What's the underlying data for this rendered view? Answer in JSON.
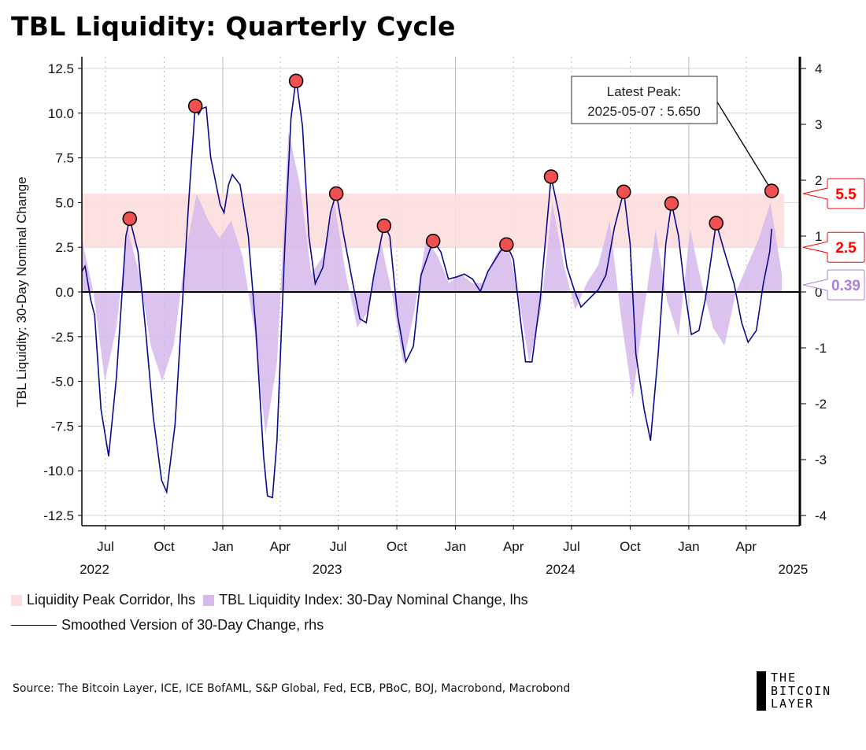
{
  "title": "TBL Liquidity: Quarterly Cycle",
  "chart_data": {
    "type": "line+area",
    "title": "TBL Liquidity: Quarterly Cycle",
    "ylabel": "TBL Liquidity: 30-Day Nominal Change",
    "ylim_lhs": [
      -13,
      13
    ],
    "ylim_rhs": [
      -4.16,
      4.16
    ],
    "yticks_lhs": [
      "12.5",
      "10.0",
      "7.5",
      "5.0",
      "2.5",
      "0.0",
      "-2.5",
      "-5.0",
      "-7.5",
      "-10.0",
      "-12.5"
    ],
    "yticks_lhs_values": [
      12.5,
      10,
      7.5,
      5,
      2.5,
      0,
      -2.5,
      -5,
      -7.5,
      -10,
      -12.5
    ],
    "yticks_rhs": [
      "4",
      "3",
      "2",
      "1",
      "0",
      "-1",
      "-2",
      "-3",
      "-4"
    ],
    "yticks_rhs_values": [
      4,
      3,
      2,
      1,
      0,
      -1,
      -2,
      -3,
      -4
    ],
    "x_origin": "2022-07-01",
    "x_unit": "days",
    "xlim_days": [
      -37,
      1110
    ],
    "xticks": [
      {
        "label": "Jul",
        "day": 0,
        "major": false
      },
      {
        "label": "Oct",
        "day": 92,
        "major": false
      },
      {
        "label": "Jan",
        "day": 184,
        "major": true
      },
      {
        "label": "Apr",
        "day": 274,
        "major": false
      },
      {
        "label": "Jul",
        "day": 365,
        "major": false
      },
      {
        "label": "Oct",
        "day": 457,
        "major": false
      },
      {
        "label": "Jan",
        "day": 549,
        "major": true
      },
      {
        "label": "Apr",
        "day": 640,
        "major": false
      },
      {
        "label": "Jul",
        "day": 731,
        "major": false
      },
      {
        "label": "Oct",
        "day": 823,
        "major": false
      },
      {
        "label": "Jan",
        "day": 915,
        "major": true
      },
      {
        "label": "Apr",
        "day": 1005,
        "major": false
      }
    ],
    "year_labels": [
      {
        "label": "2022",
        "day": 0
      },
      {
        "label": "2023",
        "day": 365
      },
      {
        "label": "2024",
        "day": 731
      },
      {
        "label": "2025",
        "day": 1096
      }
    ],
    "corridor": {
      "name": "Liquidity Peak Corridor, lhs",
      "low": 2.5,
      "high": 5.5,
      "color": "#fddede"
    },
    "area_series": {
      "name": "TBL Liquidity Index: 30-Day Nominal Change, lhs",
      "color": "#d6b8ec",
      "x": [
        -37,
        -19,
        -1,
        17,
        35,
        53,
        71,
        89,
        107,
        125,
        143,
        161,
        179,
        197,
        215,
        233,
        251,
        269,
        287,
        305,
        323,
        341,
        359,
        377,
        395,
        413,
        431,
        449,
        467,
        485,
        503,
        521,
        539,
        557,
        575,
        593,
        611,
        629,
        647,
        665,
        683,
        701,
        719,
        737,
        755,
        773,
        791,
        809,
        827,
        845,
        863,
        881,
        899,
        917,
        935,
        953,
        971,
        989,
        1007,
        1025,
        1043,
        1061
      ],
      "y": [
        3,
        0,
        -5,
        -2,
        3.5,
        1,
        -3,
        -5,
        -3,
        2,
        5.5,
        4,
        3,
        4,
        2,
        -2,
        -8,
        -4,
        9,
        6,
        1,
        2,
        5,
        1,
        -2,
        -1,
        3,
        0,
        -4,
        -1,
        3,
        2,
        0.5,
        1,
        0.5,
        0.5,
        2,
        3,
        0,
        -4,
        -1,
        5,
        1.5,
        -1,
        0.5,
        1.5,
        4,
        -1.5,
        -6,
        -1,
        3.5,
        -0.5,
        -2.5,
        3.5,
        0.5,
        -2,
        -3,
        0,
        1.5,
        3,
        5,
        1
      ]
    },
    "line_series": {
      "name": "Smoothed Version of 30-Day Change, rhs",
      "color": "#0a0a8c",
      "x": [
        -37,
        -32,
        -23,
        -17,
        -7,
        5,
        17,
        32,
        38,
        51,
        63,
        75,
        88,
        96,
        109,
        121,
        131,
        141,
        146,
        151,
        158,
        165,
        180,
        186,
        193,
        199,
        211,
        224,
        236,
        248,
        254,
        262,
        269,
        282,
        291,
        299,
        309,
        319,
        329,
        341,
        353,
        362,
        374,
        388,
        399,
        409,
        421,
        437,
        446,
        458,
        471,
        483,
        495,
        514,
        526,
        538,
        551,
        563,
        576,
        588,
        600,
        619,
        629,
        640,
        650,
        659,
        669,
        682,
        699,
        711,
        724,
        736,
        746,
        758,
        773,
        785,
        798,
        813,
        823,
        832,
        845,
        855,
        867,
        879,
        888,
        899,
        909,
        919,
        931,
        941,
        958,
        971,
        986,
        998,
        1008,
        1021,
        1032,
        1042,
        1045
      ],
      "y": [
        0.37,
        0.46,
        -0.15,
        -0.41,
        -2.1,
        -2.94,
        -1.54,
        1.0,
        1.31,
        0.72,
        -0.69,
        -2.24,
        -3.37,
        -3.58,
        -2.38,
        -0.13,
        1.7,
        3.37,
        3.18,
        3.28,
        3.31,
        2.41,
        1.56,
        1.42,
        1.92,
        2.1,
        1.92,
        1.0,
        -0.69,
        -2.94,
        -3.65,
        -3.68,
        -2.66,
        1.0,
        3.11,
        3.82,
        2.97,
        1.0,
        0.15,
        0.44,
        1.42,
        1.77,
        1.0,
        0.15,
        -0.48,
        -0.55,
        0.3,
        1.2,
        1.0,
        -0.41,
        -1.25,
        -0.97,
        0.3,
        0.92,
        0.72,
        0.23,
        0.27,
        0.32,
        0.23,
        0.01,
        0.37,
        0.72,
        0.86,
        0.58,
        -0.41,
        -1.25,
        -1.25,
        -0.13,
        2.06,
        1.42,
        0.44,
        0.01,
        -0.27,
        -0.13,
        0.04,
        0.3,
        1.14,
        1.8,
        0.86,
        -1.11,
        -2.1,
        -2.66,
        -1.11,
        0.86,
        1.59,
        1.0,
        0.01,
        -0.76,
        -0.69,
        -0.13,
        1.24,
        0.72,
        0.15,
        -0.55,
        -0.9,
        -0.69,
        0.15,
        0.72,
        1.13
      ]
    },
    "peaks": [
      {
        "date": "2022-08-08",
        "day": 38,
        "value": 4.1
      },
      {
        "date": "2022-11-19",
        "day": 141,
        "value": 10.4
      },
      {
        "date": "2023-04-26",
        "day": 299,
        "value": 11.8
      },
      {
        "date": "2023-06-28",
        "day": 362,
        "value": 5.5
      },
      {
        "date": "2023-09-11",
        "day": 437,
        "value": 3.7
      },
      {
        "date": "2023-11-27",
        "day": 514,
        "value": 2.85
      },
      {
        "date": "2024-03-21",
        "day": 629,
        "value": 2.65
      },
      {
        "date": "2024-05-30",
        "day": 699,
        "value": 6.45
      },
      {
        "date": "2024-09-21",
        "day": 813,
        "value": 5.6
      },
      {
        "date": "2024-12-05",
        "day": 888,
        "value": 4.95
      },
      {
        "date": "2025-02-13",
        "day": 958,
        "value": 3.85
      },
      {
        "date": "2025-05-07",
        "day": 1045,
        "value": 5.65
      }
    ],
    "peak_color": "#f05050",
    "annotation": {
      "line1": "Latest Peak:",
      "line2": "2025-05-07 : 5.650"
    },
    "value_tags": [
      {
        "label": "5.5",
        "value": 5.5,
        "color": "#ff0000"
      },
      {
        "label": "2.5",
        "value": 2.5,
        "color": "#ff0000"
      },
      {
        "label": "0.39",
        "value": 0.39,
        "color": "#b07ee0"
      }
    ],
    "grid": true,
    "legend_placement": "bottom-left"
  },
  "legend": {
    "corridor": "Liquidity Peak Corridor, lhs",
    "area": "TBL Liquidity Index: 30-Day Nominal Change, lhs",
    "line": "Smoothed Version of 30-Day Change, rhs"
  },
  "source": "Source: The Bitcoin Layer, ICE, ICE BofAML, S&P Global, Fed, ECB, PBoC, BOJ, Macrobond, Macrobond",
  "logo": {
    "line1": "THE",
    "line2": "BITCOIN",
    "line3": "LAYER"
  }
}
